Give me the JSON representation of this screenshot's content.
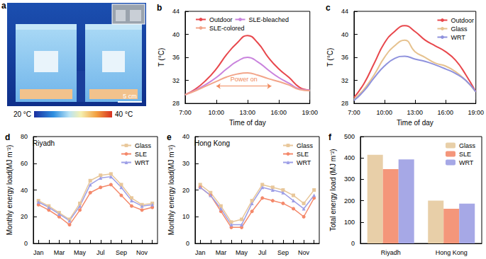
{
  "image_panel": {
    "title": "a",
    "scale_bar": "5 cm",
    "colorbar": {
      "range": [
        20,
        40
      ],
      "ticks": [
        {
          "value": 20,
          "label": "20 °C"
        },
        {
          "value": 40,
          "label": "40 °C"
        }
      ]
    }
  },
  "chart_data": [
    {
      "type": "line",
      "title": "b",
      "xlabel": "Time of day",
      "ylabel": "T (°C)",
      "x": [
        7,
        8,
        9,
        10,
        11,
        12,
        13,
        14,
        15,
        16,
        17,
        18,
        19
      ],
      "xlim": [
        7,
        19
      ],
      "xticks": [
        {
          "value": 7,
          "label": "7:00"
        },
        {
          "value": 10,
          "label": "10:00"
        },
        {
          "value": 13,
          "label": "13:00"
        },
        {
          "value": 16,
          "label": "16:00"
        },
        {
          "value": 19,
          "label": "19:00"
        }
      ],
      "ylim": [
        28,
        44
      ],
      "yticks": [
        28,
        32,
        36,
        40,
        44
      ],
      "grid": false,
      "legend": "top",
      "series": [
        {
          "name": "Outdoor",
          "color": "#e8474c",
          "values": [
            29.5,
            30.5,
            32,
            34,
            36.5,
            38.5,
            39.8,
            38.5,
            36,
            34,
            32.5,
            30.8,
            30.3
          ]
        },
        {
          "name": "SLE-bleached",
          "color": "#c983dd",
          "values": [
            29.5,
            30.3,
            31.3,
            32.5,
            34,
            35.3,
            36,
            35.2,
            33.8,
            32.5,
            31.5,
            30.5,
            30.3
          ]
        },
        {
          "name": "SLE-colored",
          "color": "#f2a58a",
          "values": [
            29.5,
            30.2,
            31,
            31.8,
            32.6,
            33.1,
            33.3,
            32.9,
            32.3,
            31.8,
            31.2,
            30.4,
            30.2
          ]
        }
      ],
      "annotations": [
        {
          "text": "Power on",
          "x": [
            10,
            15.3
          ],
          "y": 31,
          "color": "#f08a5d"
        }
      ]
    },
    {
      "type": "line",
      "title": "c",
      "xlabel": "Time of day",
      "ylabel": "T (°C)",
      "x": [
        7,
        8,
        9,
        10,
        11,
        12,
        13,
        14,
        15,
        16,
        17,
        18,
        19
      ],
      "xlim": [
        7,
        19
      ],
      "xticks": [
        {
          "value": 7,
          "label": "7:00"
        },
        {
          "value": 10,
          "label": "10:00"
        },
        {
          "value": 13,
          "label": "13:00"
        },
        {
          "value": 16,
          "label": "16:00"
        },
        {
          "value": 19,
          "label": "19:00"
        }
      ],
      "ylim": [
        28,
        44
      ],
      "yticks": [
        28,
        32,
        36,
        40,
        44
      ],
      "grid": false,
      "legend": "upper right",
      "series": [
        {
          "name": "Outdoor",
          "color": "#e8474c",
          "values": [
            29,
            31.5,
            35,
            38.5,
            40.5,
            41.5,
            40.5,
            39,
            38,
            37,
            35.5,
            33,
            30
          ]
        },
        {
          "name": "Glass",
          "color": "#e6c28f",
          "values": [
            28.7,
            30.5,
            33,
            36,
            38,
            39,
            37,
            36,
            35,
            34.5,
            33.5,
            32,
            30
          ]
        },
        {
          "name": "WRT",
          "color": "#8f92dd",
          "values": [
            28.5,
            30.2,
            32.5,
            34.5,
            35.8,
            36.2,
            35.7,
            35.3,
            34.7,
            34,
            33.2,
            32,
            30
          ]
        }
      ]
    },
    {
      "type": "line",
      "title": "d",
      "ylabel": "Monthly energy load(MJ m⁻²)",
      "categories": [
        "Jan",
        null,
        "Mar",
        null,
        "May",
        null,
        "Jul",
        null,
        "Sep",
        null,
        "Nov",
        null
      ],
      "ylim": [
        0,
        80
      ],
      "yticks": [
        0,
        20,
        40,
        60,
        80
      ],
      "grid": false,
      "legend": "upper right",
      "annotations": [
        {
          "text": "Riyadh"
        }
      ],
      "series": [
        {
          "name": "Glass",
          "color": "#e8c79a",
          "marker": "square",
          "values": [
            32,
            28,
            23,
            18,
            30,
            47,
            51,
            52,
            44,
            34,
            29,
            30
          ]
        },
        {
          "name": "SLE",
          "color": "#f4896b",
          "marker": "circle",
          "values": [
            29,
            25,
            20,
            14,
            25,
            38,
            42,
            44,
            36,
            28,
            25,
            27
          ]
        },
        {
          "name": "WRT",
          "color": "#9d9ee6",
          "marker": "triangle",
          "values": [
            31,
            27,
            22,
            17,
            28,
            44,
            49,
            50,
            42,
            32,
            28,
            29
          ]
        }
      ]
    },
    {
      "type": "line",
      "title": "e",
      "ylabel": "Monthly energy load(MJ m⁻²)",
      "categories": [
        "Jan",
        null,
        "Mar",
        null,
        "May",
        null,
        "Jul",
        null,
        "Sep",
        null,
        "Nov",
        null
      ],
      "ylim": [
        0,
        40
      ],
      "yticks": [
        0,
        10,
        20,
        30,
        40
      ],
      "grid": false,
      "legend": "upper right",
      "annotations": [
        {
          "text": "Hong Kong"
        }
      ],
      "series": [
        {
          "name": "Glass",
          "color": "#e8c79a",
          "marker": "square",
          "values": [
            22,
            19,
            14,
            8,
            9,
            16,
            22,
            21,
            20,
            18,
            15,
            20
          ]
        },
        {
          "name": "SLE",
          "color": "#f4896b",
          "marker": "circle",
          "values": [
            21,
            18,
            12,
            6,
            6,
            12,
            17,
            16,
            15,
            13,
            10,
            17
          ]
        },
        {
          "name": "WRT",
          "color": "#9d9ee6",
          "marker": "triangle",
          "values": [
            21,
            18,
            13,
            7,
            7,
            15,
            21,
            20,
            19,
            16,
            13,
            18
          ]
        }
      ]
    },
    {
      "type": "bar",
      "title": "f",
      "ylabel": "Total energy load (MJ m⁻²)",
      "categories": [
        "Riyadh",
        "Hong Kong"
      ],
      "ylim": [
        0,
        500
      ],
      "yticks": [
        0,
        100,
        200,
        300,
        400,
        500
      ],
      "grid": false,
      "legend": "upper right",
      "series": [
        {
          "name": "Glass",
          "color": "#e8cfa8",
          "values": [
            415,
            200
          ]
        },
        {
          "name": "SLE",
          "color": "#f4967a",
          "values": [
            348,
            162
          ]
        },
        {
          "name": "WRT",
          "color": "#a6a8e6",
          "values": [
            393,
            186
          ]
        }
      ]
    }
  ]
}
